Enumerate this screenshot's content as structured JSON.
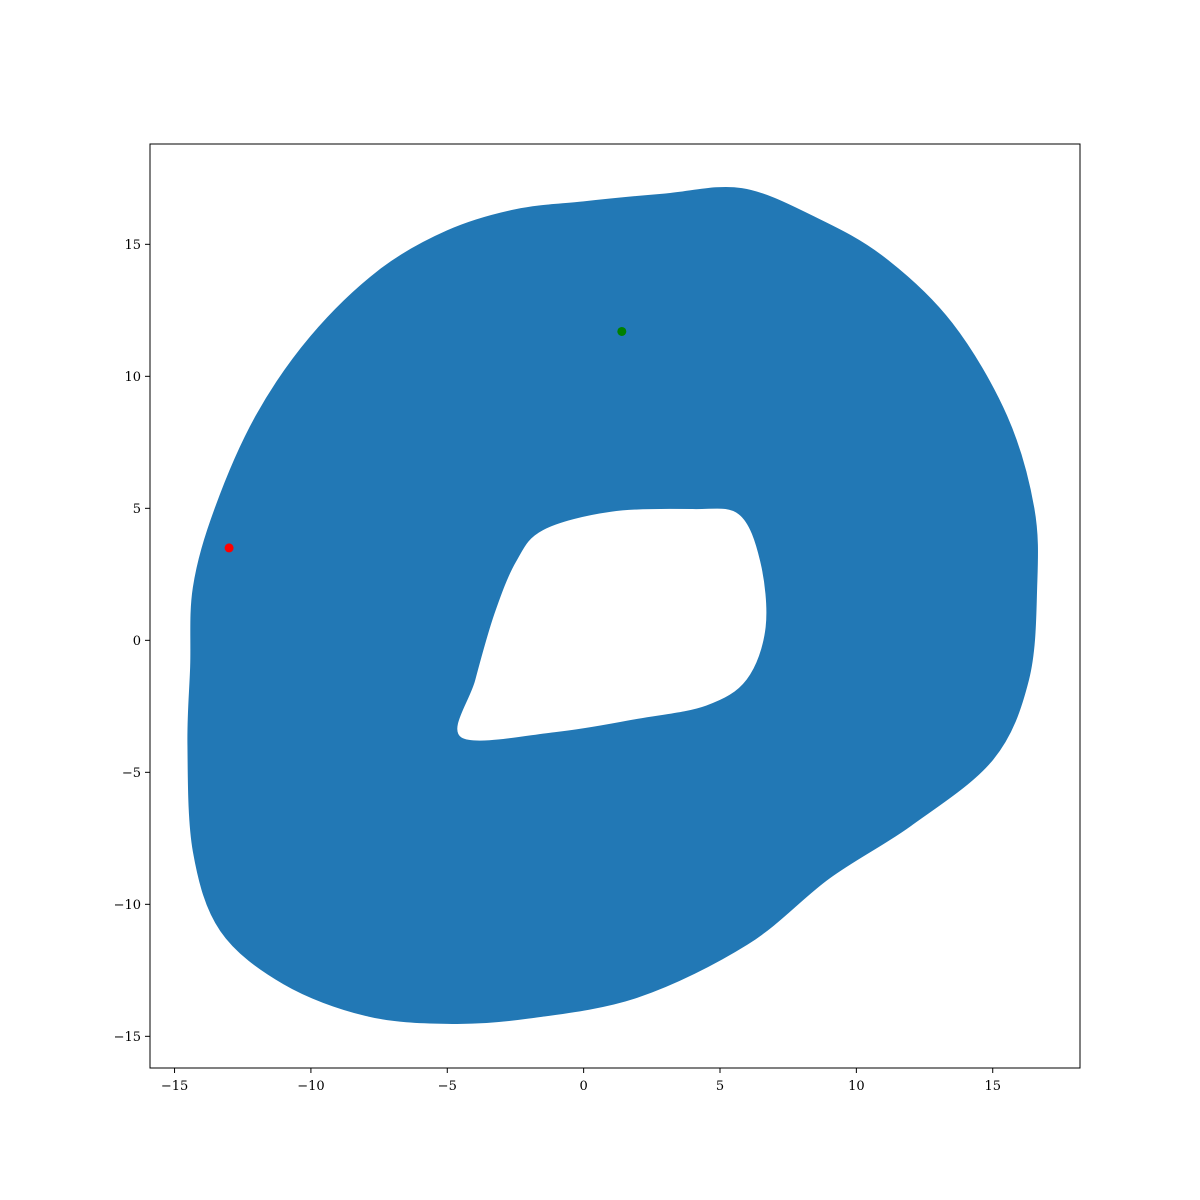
{
  "chart_data": {
    "type": "line",
    "title": "",
    "xlabel": "",
    "ylabel": "",
    "xlim": [
      -15.9,
      18.2
    ],
    "ylim": [
      -16.2,
      18.8
    ],
    "x_ticks": [
      -15,
      -10,
      -5,
      0,
      5,
      10,
      15
    ],
    "y_ticks": [
      -15,
      -10,
      -5,
      0,
      5,
      10,
      15
    ],
    "x_tick_labels": [
      "−15",
      "−10",
      "−5",
      "0",
      "5",
      "10",
      "15"
    ],
    "y_tick_labels": [
      "−15",
      "−10",
      "−5",
      "0",
      "5",
      "10",
      "15"
    ],
    "grid": false,
    "legend": "none",
    "series": [
      {
        "color": "#2278b5",
        "outer_boundary": [
          [
            -14.3,
            2.0
          ],
          [
            -13.5,
            5.0
          ],
          [
            -12.0,
            8.5
          ],
          [
            -10.0,
            11.5
          ],
          [
            -7.5,
            14.0
          ],
          [
            -5.0,
            15.5
          ],
          [
            -2.5,
            16.3
          ],
          [
            0.0,
            16.6
          ],
          [
            3.0,
            16.9
          ],
          [
            5.8,
            17.1
          ],
          [
            8.5,
            16.0
          ],
          [
            11.0,
            14.5
          ],
          [
            13.5,
            12.0
          ],
          [
            15.5,
            8.5
          ],
          [
            16.5,
            5.0
          ],
          [
            16.6,
            2.0
          ],
          [
            16.3,
            -1.5
          ],
          [
            15.0,
            -4.5
          ],
          [
            12.0,
            -7.0
          ],
          [
            9.0,
            -9.0
          ],
          [
            6.0,
            -11.5
          ],
          [
            2.0,
            -13.5
          ],
          [
            -2.0,
            -14.3
          ],
          [
            -5.0,
            -14.5
          ],
          [
            -8.0,
            -14.2
          ],
          [
            -11.0,
            -13.0
          ],
          [
            -13.3,
            -11.0
          ],
          [
            -14.3,
            -8.0
          ],
          [
            -14.5,
            -4.0
          ],
          [
            -14.4,
            -1.0
          ]
        ],
        "inner_hole": [
          [
            -2.5,
            3.0
          ],
          [
            -1.5,
            4.2
          ],
          [
            1.0,
            4.9
          ],
          [
            4.0,
            5.0
          ],
          [
            5.7,
            4.8
          ],
          [
            6.5,
            3.0
          ],
          [
            6.7,
            0.5
          ],
          [
            6.0,
            -1.5
          ],
          [
            4.5,
            -2.5
          ],
          [
            2.0,
            -3.0
          ],
          [
            -1.0,
            -3.5
          ],
          [
            -4.5,
            -3.7
          ],
          [
            -4.0,
            -1.5
          ],
          [
            -3.3,
            1.0
          ]
        ]
      }
    ],
    "markers": [
      {
        "x": -13.0,
        "y": 3.5,
        "color": "#ff0000"
      },
      {
        "x": 1.4,
        "y": 11.7,
        "color": "#008000"
      }
    ]
  }
}
